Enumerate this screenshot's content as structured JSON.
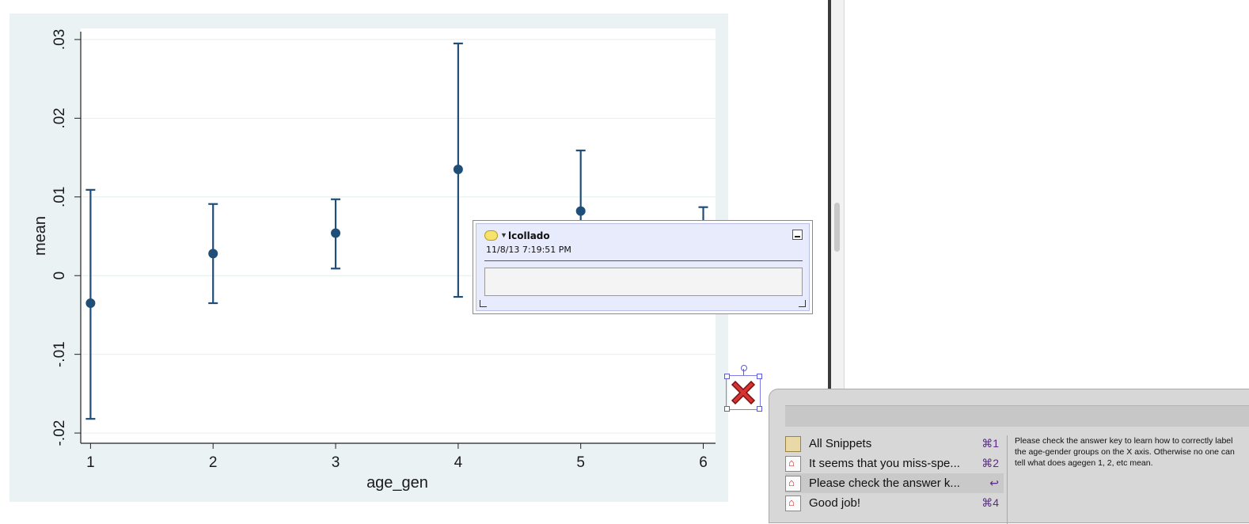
{
  "chart_data": {
    "type": "scatter",
    "subtype": "errorbar",
    "xlabel": "age_gen",
    "ylabel": "mean",
    "x_ticks": [
      "1",
      "2",
      "3",
      "4",
      "5",
      "6"
    ],
    "y_ticks": [
      "-.02",
      "-.01",
      "0",
      ".01",
      ".02",
      ".03"
    ],
    "y_tick_values": [
      -0.02,
      -0.01,
      0,
      0.01,
      0.02,
      0.03
    ],
    "xlim": [
      0.92,
      6.1
    ],
    "ylim": [
      -0.0213,
      0.0314
    ],
    "grid": true,
    "points": [
      {
        "x": 1,
        "mean": -0.0035,
        "lo": -0.0182,
        "hi": 0.0109
      },
      {
        "x": 2,
        "mean": 0.0028,
        "lo": -0.0035,
        "hi": 0.0091
      },
      {
        "x": 3,
        "mean": 0.0054,
        "lo": 0.0009,
        "hi": 0.0097
      },
      {
        "x": 4,
        "mean": 0.0135,
        "lo": -0.0027,
        "hi": 0.0295
      },
      {
        "x": 5,
        "mean": 0.0082,
        "lo": 0.0003,
        "hi": 0.0159
      },
      {
        "x": 6,
        "mean": 0.0046,
        "lo": 0.0001,
        "hi": 0.0087
      }
    ],
    "colors": {
      "marker": "#1f4e79",
      "background": "#eaf2f3",
      "plot_region": "#ffffff",
      "grid": "#e4eeee"
    }
  },
  "comment": {
    "author": "lcollado",
    "date": "11/8/13 7:19:51 PM",
    "text": ""
  },
  "snippets": {
    "items": [
      {
        "label": "All Snippets",
        "shortcut": "⌘1",
        "icon": "clipboard-icon",
        "selected": false
      },
      {
        "label": "It seems that you miss-spe...",
        "shortcut": "⌘2",
        "icon": "pdf-icon",
        "selected": false
      },
      {
        "label": "Please check the answer k...",
        "shortcut": "↩",
        "icon": "pdf-icon",
        "selected": true
      },
      {
        "label": "Good job!",
        "shortcut": "⌘4",
        "icon": "pdf-icon",
        "selected": false
      }
    ],
    "preview": "Please check the answer key to learn how to correctly label the age-gender groups on the X axis. Otherwise no one can tell what does agegen 1, 2, etc mean."
  }
}
